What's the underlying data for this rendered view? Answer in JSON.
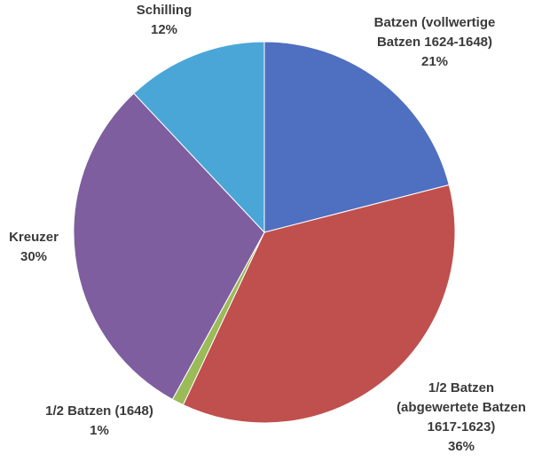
{
  "chart_data": {
    "type": "pie",
    "categories": [
      "Batzen (vollwertige\nBatzen 1624-1648)",
      "1/2 Batzen\n(abgewertete Batzen\n1617-1623)",
      "1/2 Batzen (1648)",
      "Kreuzer",
      "Schilling"
    ],
    "values": [
      21,
      36,
      1,
      30,
      12
    ],
    "value_labels": [
      "21%",
      "36%",
      "1%",
      "30%",
      "12%"
    ],
    "colors": [
      "#4f6fc0",
      "#c0504d",
      "#9bbb59",
      "#7e5e9f",
      "#4ba6d8"
    ]
  }
}
